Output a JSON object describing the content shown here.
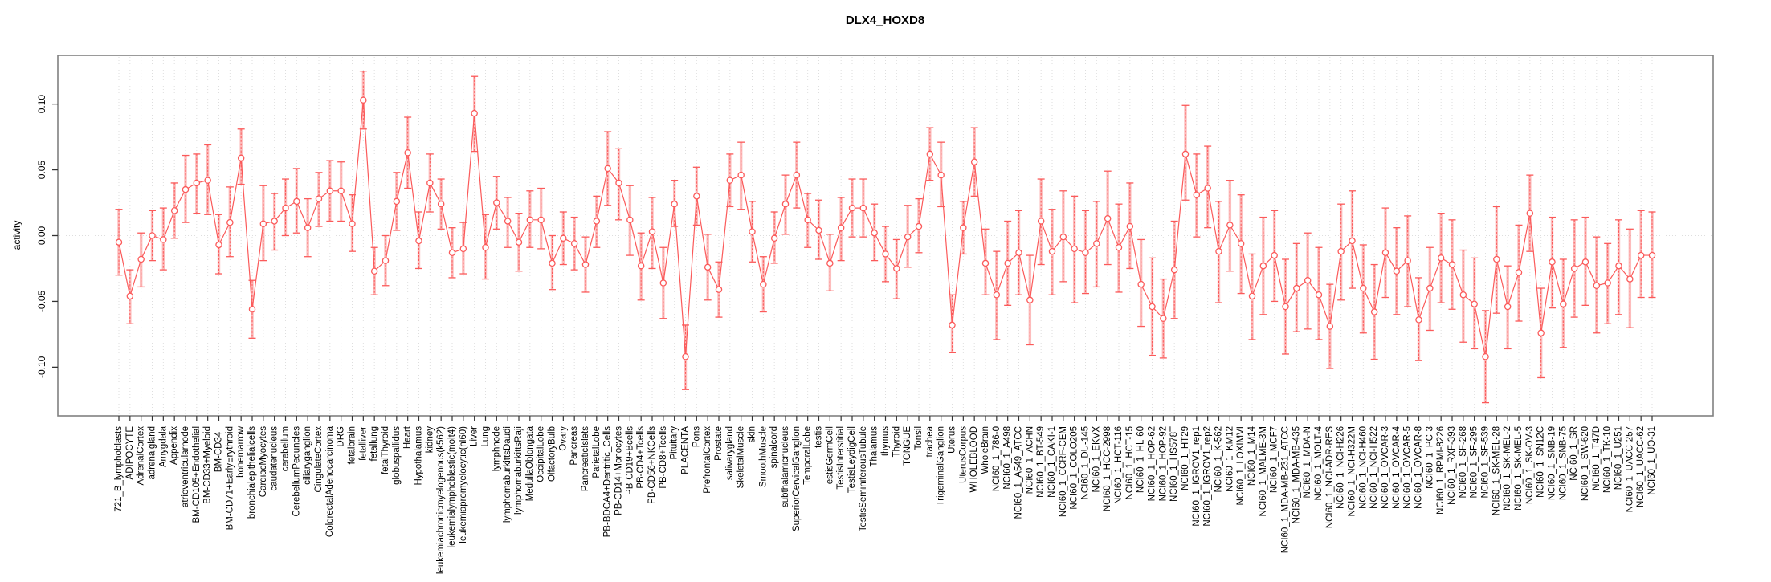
{
  "chart_data": {
    "type": "line",
    "title": "DLX4_HOXD8",
    "xlabel": "",
    "ylabel": "activity",
    "legend": "none",
    "grid": "vertical dotted gridline per category; horizontal dotted line at 0",
    "point_style": "open circles with error bars, red",
    "ylim": [
      -0.137,
      0.137
    ],
    "y_ticks": [
      0.1,
      0.05,
      0.0,
      -0.05,
      -0.1
    ],
    "colors": {
      "series": "#fb5a5a",
      "error_fill": "rgba(251,106,106,0.45)",
      "grid": "#dedede",
      "axis_box": "#808080",
      "tick": "#333333",
      "text": "#000000",
      "background": "#ffffff"
    },
    "categories": [
      "721_B_lymphoblasts",
      "ADIPOCYTE",
      "AdrenalCortex",
      "adrenalgland",
      "Amygdala",
      "Appendix",
      "atrioventricularnode",
      "BM-CD105+Endothelial",
      "BM-CD33+Myeloid",
      "BM-CD34+",
      "BM-CD71+EarlyErythroid",
      "bonemarrow",
      "bronchialepithelialcells",
      "CardiacMyocytes",
      "caudatenucleus",
      "cerebellum",
      "CerebellumPeduncles",
      "ciliaryganglion",
      "CingulateCortex",
      "ColorectalAdenocarcinoma",
      "DRG",
      "fetalbrain",
      "fetalliver",
      "fetallung",
      "fetalThyroid",
      "globuspallidus",
      "Heart",
      "Hypothalamus",
      "kidney",
      "leukemiachronicmyelogenous(k562)",
      "leukemialymphoblastic(molt4)",
      "leukemiapromyelocytic(hl60)",
      "Liver",
      "Lung",
      "lymphnode",
      "lymphomaburkittsDaudi",
      "lymphomaburkittsRaji",
      "MedullaOblongata",
      "OccipitalLobe",
      "OlfactoryBulb",
      "Ovary",
      "Pancreas",
      "PancreaticIslets",
      "ParietalLobe",
      "PB-BDCA4+Dentritic_Cells",
      "PB-CD14+Monocytes",
      "PB-CD19+Bcells",
      "PB-CD4+Tcells",
      "PB-CD56+NKCells",
      "PB-CD8+Tcells",
      "Pituitary",
      "PLACENTA",
      "Pons",
      "PrefrontalCortex",
      "Prostate",
      "salivarygland",
      "SkeletalMuscle",
      "skin",
      "SmoothMuscle",
      "spinalcord",
      "subthalamicnucleus",
      "SuperiorCervicalGanglion",
      "TemporalLobe",
      "testis",
      "TestisGermCell",
      "TestisInterstitial",
      "TestisLeydigCell",
      "TestisSeminiferousTubule",
      "Thalamus",
      "thymus",
      "Thyroid",
      "TONGUE",
      "Tonsil",
      "trachea",
      "TrigeminalGanglion",
      "Uterus",
      "UterusCorpus",
      "WHOLEBLOOD",
      "WholeBrain",
      "NCI60_1_786-0",
      "NCI60_1_A498",
      "NCI60_1_A549_ATCC",
      "NCI60_1_ACHN",
      "NCI60_1_BT-549",
      "NCI60_1_CAKI-1",
      "NCI60_1_CCRF-CEM",
      "NCI60_1_COLO205",
      "NCI60_1_DU-145",
      "NCI60_1_EKVX",
      "NCI60_1_HCC-2998",
      "NCI60_1_HCT-116",
      "NCI60_1_HCT-15",
      "NCI60_1_HL-60",
      "NCI60_1_HOP-62",
      "NCI60_1_HOP-92",
      "NCI60_1_HS578T",
      "NCI60_1_HT29",
      "NCI60_1_IGROV1_rep1",
      "NCI60_1_IGROV1_rep2",
      "NCI60_1_K-562",
      "NCI60_1_KM12",
      "NCI60_1_LOXIMVI",
      "NCI60_1_M14",
      "NCI60_1_MALME-3M",
      "NCI60_1_MCF7",
      "NCI60_1_MDA-MB-231_ATCC",
      "NCI60_1_MDA-MB-435",
      "NCI60_1_MDA-N",
      "NCI60_1_MOLT-4",
      "NCI60_1_NCI-ADR-RES",
      "NCI60_1_NCI-H226",
      "NCI60_1_NCI-H322M",
      "NCI60_1_NCI-H460",
      "NCI60_1_NCI-H522",
      "NCI60_1_OVCAR-3",
      "NCI60_1_OVCAR-4",
      "NCI60_1_OVCAR-5",
      "NCI60_1_OVCAR-8",
      "NCI60_1_PC-3",
      "NCI60_1_RPMI-8226",
      "NCI60_1_RXF-393",
      "NCI60_1_SF-268",
      "NCI60_1_SF-295",
      "NCI60_1_SF-539",
      "NCI60_1_SK-MEL-28",
      "NCI60_1_SK-MEL-2",
      "NCI60_1_SK-MEL-5",
      "NCI60_1_SK-OV-3",
      "NCI60_1_SN12C",
      "NCI60_1_SNB-19",
      "NCI60_1_SNB-75",
      "NCI60_1_SR",
      "NCI60_1_SW-620",
      "NCI60_1_T47D",
      "NCI60_1_TK-10",
      "NCI60_1_U251",
      "NCI60_1_UACC-257",
      "NCI60_1_UACC-62",
      "NCI60_1_UO-31"
    ],
    "series": [
      {
        "name": "activity",
        "values": [
          -0.005,
          -0.046,
          -0.018,
          0.0,
          -0.003,
          0.019,
          0.035,
          0.04,
          0.042,
          -0.007,
          0.01,
          0.059,
          -0.056,
          0.009,
          0.011,
          0.021,
          0.026,
          0.006,
          0.028,
          0.034,
          0.034,
          0.009,
          0.103,
          -0.027,
          -0.019,
          0.026,
          0.063,
          -0.004,
          0.04,
          0.024,
          -0.013,
          -0.01,
          0.093,
          -0.009,
          0.025,
          0.011,
          -0.005,
          0.012,
          0.012,
          -0.021,
          -0.002,
          -0.006,
          -0.022,
          0.011,
          0.051,
          0.04,
          0.012,
          -0.023,
          0.003,
          -0.036,
          0.024,
          -0.092,
          0.03,
          -0.024,
          -0.041,
          0.042,
          0.046,
          0.003,
          -0.037,
          -0.002,
          0.024,
          0.046,
          0.012,
          0.004,
          -0.021,
          0.006,
          0.021,
          0.021,
          0.002,
          -0.014,
          -0.025,
          -0.001,
          0.007,
          0.062,
          0.046,
          -0.068,
          0.006,
          0.056,
          -0.021,
          -0.045,
          -0.021,
          -0.013,
          -0.049,
          0.011,
          -0.012,
          -0.001,
          -0.01,
          -0.013,
          -0.006,
          0.013,
          -0.009,
          0.007,
          -0.037,
          -0.054,
          -0.063,
          -0.026,
          0.062,
          0.031,
          0.036,
          -0.012,
          0.008,
          -0.006,
          -0.046,
          -0.023,
          -0.015,
          -0.054,
          -0.04,
          -0.034,
          -0.045,
          -0.069,
          -0.012,
          -0.004,
          -0.04,
          -0.058,
          -0.013,
          -0.027,
          -0.019,
          -0.064,
          -0.04,
          -0.017,
          -0.022,
          -0.045,
          -0.052,
          -0.092,
          -0.018,
          -0.054,
          -0.028,
          0.017,
          -0.074,
          -0.02,
          -0.052,
          -0.025,
          -0.02,
          -0.038,
          -0.036,
          -0.023,
          -0.033,
          -0.015,
          -0.015
        ],
        "error_high": [
          0.02,
          -0.026,
          0.002,
          0.019,
          0.021,
          0.04,
          0.061,
          0.062,
          0.069,
          0.016,
          0.037,
          0.081,
          -0.034,
          0.038,
          0.032,
          0.043,
          0.051,
          0.028,
          0.048,
          0.057,
          0.056,
          0.031,
          0.125,
          -0.009,
          0.0,
          0.048,
          0.09,
          0.018,
          0.062,
          0.043,
          0.006,
          0.01,
          0.121,
          0.016,
          0.045,
          0.029,
          0.017,
          0.034,
          0.036,
          0.0,
          0.018,
          0.014,
          -0.001,
          0.03,
          0.079,
          0.066,
          0.038,
          0.002,
          0.029,
          -0.009,
          0.042,
          -0.068,
          0.052,
          0.001,
          -0.02,
          0.062,
          0.071,
          0.026,
          -0.016,
          0.018,
          0.046,
          0.071,
          0.032,
          0.027,
          0.001,
          0.029,
          0.043,
          0.043,
          0.024,
          0.007,
          -0.003,
          0.023,
          0.028,
          0.082,
          0.071,
          -0.045,
          0.026,
          0.082,
          0.005,
          -0.012,
          0.011,
          0.019,
          -0.015,
          0.043,
          0.02,
          0.034,
          0.03,
          0.019,
          0.026,
          0.049,
          0.024,
          0.04,
          -0.003,
          -0.017,
          -0.033,
          0.011,
          0.099,
          0.062,
          0.068,
          0.026,
          0.042,
          0.031,
          -0.014,
          0.014,
          0.019,
          -0.018,
          -0.006,
          0.002,
          -0.009,
          -0.037,
          0.024,
          0.034,
          -0.007,
          -0.022,
          0.021,
          0.006,
          0.015,
          -0.032,
          -0.009,
          0.017,
          0.012,
          -0.011,
          -0.017,
          -0.057,
          0.022,
          -0.023,
          0.008,
          0.046,
          -0.04,
          0.014,
          -0.018,
          0.012,
          0.014,
          -0.001,
          -0.006,
          0.012,
          0.005,
          0.019,
          0.018
        ],
        "error_low": [
          -0.03,
          -0.067,
          -0.039,
          -0.019,
          -0.026,
          -0.002,
          0.01,
          0.017,
          0.016,
          -0.029,
          -0.016,
          0.039,
          -0.078,
          -0.019,
          -0.011,
          0.0,
          0.002,
          -0.016,
          0.007,
          0.011,
          0.011,
          -0.012,
          0.081,
          -0.045,
          -0.038,
          0.004,
          0.036,
          -0.025,
          0.018,
          0.005,
          -0.032,
          -0.029,
          0.064,
          -0.033,
          0.005,
          -0.009,
          -0.027,
          -0.009,
          -0.01,
          -0.041,
          -0.022,
          -0.026,
          -0.043,
          -0.009,
          0.023,
          0.012,
          -0.015,
          -0.049,
          -0.025,
          -0.063,
          0.007,
          -0.117,
          0.008,
          -0.049,
          -0.062,
          0.022,
          0.02,
          -0.02,
          -0.058,
          -0.021,
          0.001,
          0.021,
          -0.009,
          -0.018,
          -0.042,
          -0.019,
          -0.001,
          -0.001,
          -0.019,
          -0.035,
          -0.048,
          -0.024,
          -0.013,
          0.042,
          0.022,
          -0.089,
          -0.014,
          0.03,
          -0.045,
          -0.079,
          -0.053,
          -0.045,
          -0.083,
          -0.022,
          -0.045,
          -0.035,
          -0.051,
          -0.044,
          -0.039,
          -0.022,
          -0.043,
          -0.025,
          -0.069,
          -0.091,
          -0.093,
          -0.063,
          0.027,
          -0.001,
          0.006,
          -0.051,
          -0.027,
          -0.044,
          -0.079,
          -0.06,
          -0.05,
          -0.09,
          -0.073,
          -0.071,
          -0.079,
          -0.101,
          -0.049,
          -0.04,
          -0.074,
          -0.094,
          -0.047,
          -0.06,
          -0.054,
          -0.095,
          -0.072,
          -0.051,
          -0.056,
          -0.081,
          -0.086,
          -0.127,
          -0.059,
          -0.086,
          -0.065,
          -0.012,
          -0.108,
          -0.055,
          -0.085,
          -0.062,
          -0.053,
          -0.074,
          -0.067,
          -0.06,
          -0.07,
          -0.047,
          -0.047
        ]
      }
    ]
  }
}
